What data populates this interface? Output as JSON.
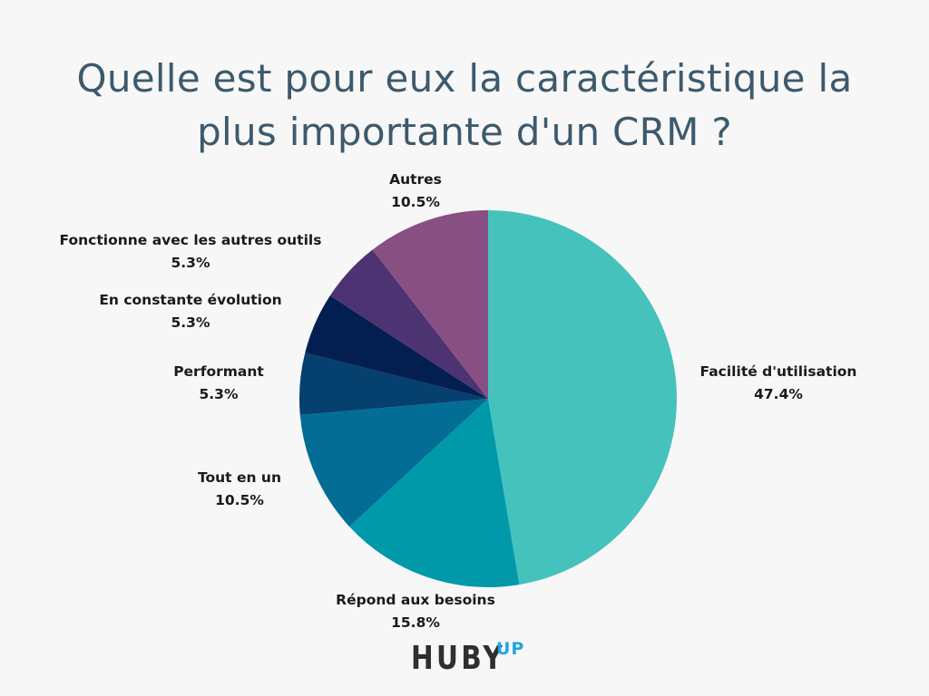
{
  "title_lines": [
    "Quelle est pour eux la caractéristique la",
    "plus importante d'un CRM ?"
  ],
  "chart_data": {
    "type": "pie",
    "title": "Quelle est pour eux la caractéristique la plus importante d'un CRM ?",
    "slices": [
      {
        "label": "Facilité d'utilisation",
        "value": 47.4,
        "value_label": "47.4%",
        "color": "#45c2bc"
      },
      {
        "label": "Répond aux besoins",
        "value": 15.8,
        "value_label": "15.8%",
        "color": "#0099aa"
      },
      {
        "label": "Tout en un",
        "value": 10.5,
        "value_label": "10.5%",
        "color": "#036d96"
      },
      {
        "label": "Performant",
        "value": 5.3,
        "value_label": "5.3%",
        "color": "#05406f"
      },
      {
        "label": "En constante évolution",
        "value": 5.3,
        "value_label": "5.3%",
        "color": "#031f51"
      },
      {
        "label": "Fonctionne avec les autres outils",
        "value": 5.3,
        "value_label": "5.3%",
        "color": "#4d3372"
      },
      {
        "label": "Autres",
        "value": 10.5,
        "value_label": "10.5%",
        "color": "#874f82"
      }
    ],
    "start": "12 o'clock",
    "direction": "clockwise"
  },
  "logo": {
    "main": "HUBY",
    "sup": "UP"
  }
}
